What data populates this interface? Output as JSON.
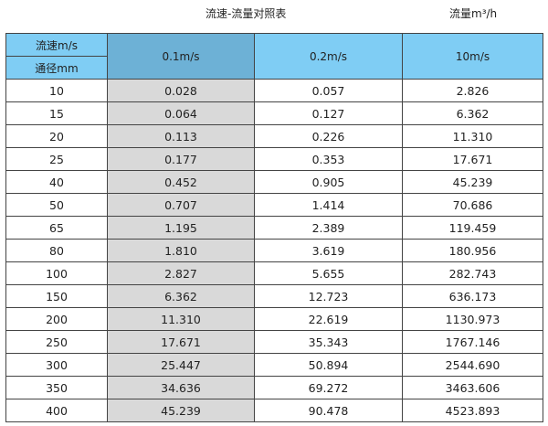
{
  "title": "流速-流量对照表",
  "unit": "流量m³/h",
  "header": {
    "velocity_label": "流速m/s",
    "diameter_label": "通径mm",
    "columns": [
      "0.1m/s",
      "0.2m/s",
      "10m/s"
    ]
  },
  "colors": {
    "header": "#7fcdf4",
    "highlight_header": "#6db1d6",
    "highlight_column": "#d9d9d9"
  },
  "rows": [
    [
      "10",
      "0.028",
      "0.057",
      "2.826"
    ],
    [
      "15",
      "0.064",
      "0.127",
      "6.362"
    ],
    [
      "20",
      "0.113",
      "0.226",
      "11.310"
    ],
    [
      "25",
      "0.177",
      "0.353",
      "17.671"
    ],
    [
      "40",
      "0.452",
      "0.905",
      "45.239"
    ],
    [
      "50",
      "0.707",
      "1.414",
      "70.686"
    ],
    [
      "65",
      "1.195",
      "2.389",
      "119.459"
    ],
    [
      "80",
      "1.810",
      "3.619",
      "180.956"
    ],
    [
      "100",
      "2.827",
      "5.655",
      "282.743"
    ],
    [
      "150",
      "6.362",
      "12.723",
      "636.173"
    ],
    [
      "200",
      "11.310",
      "22.619",
      "1130.973"
    ],
    [
      "250",
      "17.671",
      "35.343",
      "1767.146"
    ],
    [
      "300",
      "25.447",
      "50.894",
      "2544.690"
    ],
    [
      "350",
      "34.636",
      "69.272",
      "3463.606"
    ],
    [
      "400",
      "45.239",
      "90.478",
      "4523.893"
    ]
  ]
}
